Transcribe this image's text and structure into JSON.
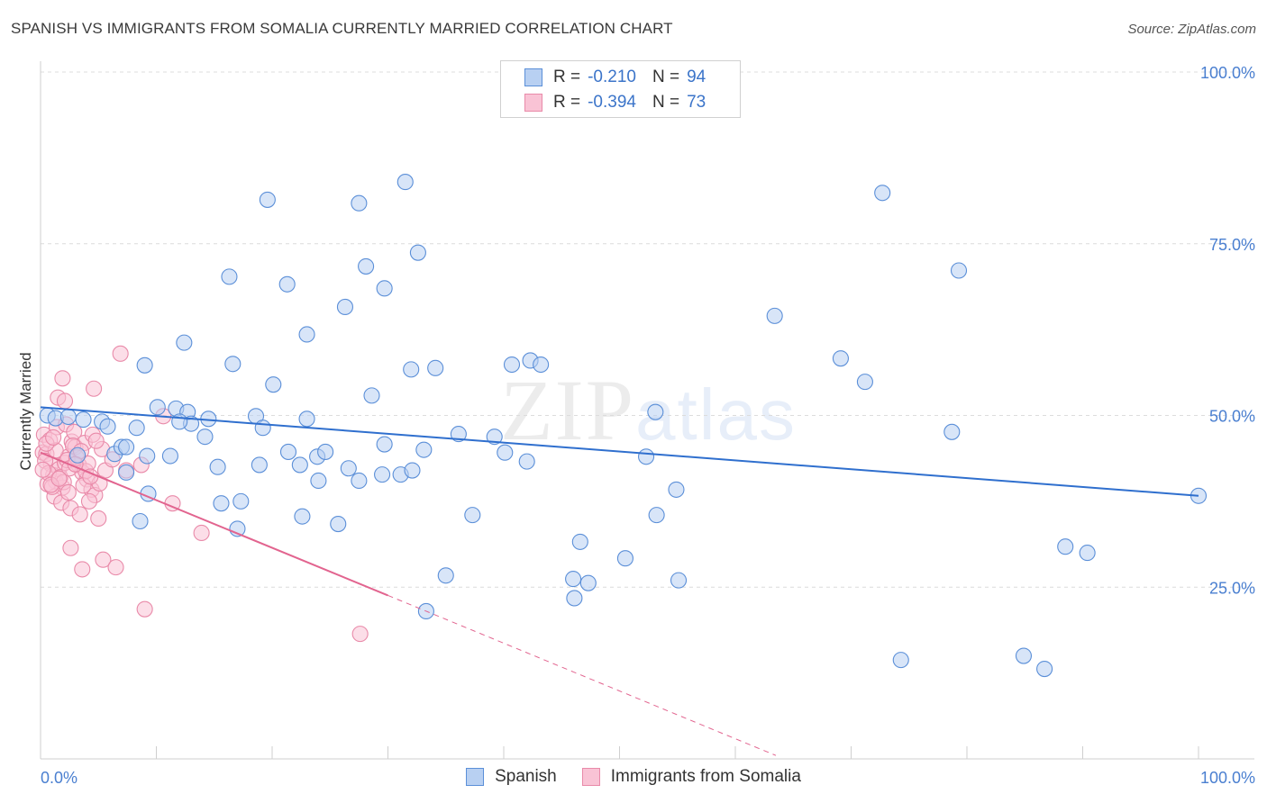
{
  "title": "SPANISH VS IMMIGRANTS FROM SOMALIA CURRENTLY MARRIED CORRELATION CHART",
  "source": "Source: ZipAtlas.com",
  "watermark": {
    "zip": "ZIP",
    "atlas": "atlas"
  },
  "legend": {
    "r_label": "R =",
    "n_label": "N =",
    "spanish": {
      "r": "-0.210",
      "n": "94"
    },
    "somalia": {
      "r": "-0.394",
      "n": "73"
    }
  },
  "colors": {
    "spanish_fill": "#b8d0f2",
    "spanish_stroke": "#5b8fd8",
    "spanish_line": "#2f6fce",
    "somalia_fill": "#f9c3d5",
    "somalia_stroke": "#e98aa9",
    "somalia_line": "#e2648f",
    "grid": "#dcdcdc",
    "tick_text": "#4a7fd0"
  },
  "chart_data": {
    "type": "scatter",
    "title": "SPANISH VS IMMIGRANTS FROM SOMALIA CURRENTLY MARRIED CORRELATION CHART",
    "xlabel": "",
    "ylabel": "Currently Married",
    "xlim": [
      0,
      100
    ],
    "ylim": [
      0,
      105
    ],
    "x_tick_labels": [
      "0.0%",
      "100.0%"
    ],
    "y_ticks": [
      25,
      50,
      75,
      100
    ],
    "y_tick_labels": [
      "25.0%",
      "50.0%",
      "75.0%",
      "100.0%"
    ],
    "grid": "horizontal dashed",
    "legend_position": "top-center",
    "series": [
      {
        "name": "Spanish",
        "r": -0.21,
        "n": 94,
        "trend": {
          "x": [
            0,
            100
          ],
          "y": [
            51.2,
            38.3
          ],
          "dashed_from": null
        },
        "points": [
          [
            0.6,
            50.0
          ],
          [
            1.3,
            49.6
          ],
          [
            2.4,
            49.8
          ],
          [
            3.7,
            49.4
          ],
          [
            5.3,
            49.1
          ],
          [
            5.8,
            48.4
          ],
          [
            8.3,
            48.2
          ],
          [
            10.1,
            51.2
          ],
          [
            11.7,
            51.0
          ],
          [
            12.7,
            50.5
          ],
          [
            13.0,
            48.8
          ],
          [
            14.5,
            49.5
          ],
          [
            18.6,
            49.9
          ],
          [
            19.2,
            48.2
          ],
          [
            23.0,
            49.5
          ],
          [
            3.2,
            44.2
          ],
          [
            6.4,
            44.4
          ],
          [
            7.0,
            45.4
          ],
          [
            7.4,
            45.4
          ],
          [
            9.2,
            44.1
          ],
          [
            11.2,
            44.1
          ],
          [
            14.2,
            46.9
          ],
          [
            15.3,
            42.5
          ],
          [
            18.9,
            42.8
          ],
          [
            21.4,
            44.7
          ],
          [
            23.9,
            44.0
          ],
          [
            24.6,
            44.7
          ],
          [
            27.5,
            40.5
          ],
          [
            28.6,
            52.9
          ],
          [
            29.5,
            41.4
          ],
          [
            29.7,
            45.8
          ],
          [
            31.1,
            41.4
          ],
          [
            32.1,
            42.0
          ],
          [
            24.0,
            40.5
          ],
          [
            9.3,
            38.6
          ],
          [
            7.4,
            41.7
          ],
          [
            15.6,
            37.2
          ],
          [
            17.3,
            37.5
          ],
          [
            17.0,
            33.5
          ],
          [
            22.6,
            35.3
          ],
          [
            25.7,
            34.2
          ],
          [
            8.6,
            34.6
          ],
          [
            9.0,
            57.3
          ],
          [
            12.4,
            60.6
          ],
          [
            16.6,
            57.5
          ],
          [
            20.1,
            54.5
          ],
          [
            23.0,
            61.8
          ],
          [
            32.0,
            56.7
          ],
          [
            34.1,
            56.9
          ],
          [
            36.1,
            47.3
          ],
          [
            39.2,
            46.9
          ],
          [
            40.7,
            57.4
          ],
          [
            42.3,
            58.0
          ],
          [
            43.2,
            57.4
          ],
          [
            52.3,
            44.0
          ],
          [
            53.1,
            50.5
          ],
          [
            54.9,
            39.2
          ],
          [
            16.3,
            70.2
          ],
          [
            21.3,
            69.1
          ],
          [
            26.3,
            65.8
          ],
          [
            28.1,
            71.7
          ],
          [
            29.7,
            68.5
          ],
          [
            19.6,
            81.4
          ],
          [
            27.5,
            80.9
          ],
          [
            31.5,
            84.0
          ],
          [
            32.6,
            73.7
          ],
          [
            63.4,
            64.5
          ],
          [
            69.1,
            58.3
          ],
          [
            71.2,
            54.9
          ],
          [
            72.7,
            82.4
          ],
          [
            79.3,
            71.1
          ],
          [
            78.7,
            47.6
          ],
          [
            35.0,
            26.7
          ],
          [
            46.6,
            31.6
          ],
          [
            50.5,
            29.2
          ],
          [
            53.2,
            35.5
          ],
          [
            46.0,
            26.2
          ],
          [
            46.1,
            23.4
          ],
          [
            47.3,
            25.6
          ],
          [
            55.1,
            26.0
          ],
          [
            33.3,
            21.5
          ],
          [
            74.3,
            14.4
          ],
          [
            84.9,
            15.0
          ],
          [
            86.7,
            13.1
          ],
          [
            88.5,
            30.9
          ],
          [
            90.4,
            30.0
          ],
          [
            100.0,
            38.3
          ],
          [
            42.0,
            43.3
          ],
          [
            40.1,
            44.6
          ],
          [
            37.3,
            35.5
          ],
          [
            22.4,
            42.8
          ],
          [
            26.6,
            42.3
          ],
          [
            33.1,
            45.0
          ],
          [
            12.0,
            49.1
          ]
        ]
      },
      {
        "name": "Immigrants from Somalia",
        "r": -0.394,
        "n": 73,
        "trend": {
          "x": [
            0,
            30,
            63.5
          ],
          "y": [
            44.6,
            23.8,
            0.5
          ],
          "dashed_from": 30
        },
        "points": [
          [
            0.2,
            44.6
          ],
          [
            0.5,
            44.4
          ],
          [
            0.9,
            42.9
          ],
          [
            1.1,
            41.3
          ],
          [
            1.3,
            40.4
          ],
          [
            1.6,
            42.2
          ],
          [
            1.9,
            39.5
          ],
          [
            2.1,
            43.1
          ],
          [
            2.4,
            44.0
          ],
          [
            2.7,
            46.2
          ],
          [
            3.0,
            45.4
          ],
          [
            3.3,
            42.8
          ],
          [
            3.6,
            41.7
          ],
          [
            4.0,
            40.7
          ],
          [
            4.4,
            39.2
          ],
          [
            4.7,
            38.4
          ],
          [
            5.1,
            40.1
          ],
          [
            5.6,
            42.0
          ],
          [
            0.3,
            47.2
          ],
          [
            0.8,
            46.4
          ],
          [
            1.4,
            48.3
          ],
          [
            2.2,
            48.7
          ],
          [
            2.9,
            47.6
          ],
          [
            3.8,
            46.0
          ],
          [
            4.5,
            47.2
          ],
          [
            5.3,
            45.1
          ],
          [
            0.6,
            40.0
          ],
          [
            1.2,
            38.2
          ],
          [
            1.8,
            37.3
          ],
          [
            2.6,
            36.5
          ],
          [
            3.4,
            35.6
          ],
          [
            4.2,
            37.5
          ],
          [
            5.0,
            35.0
          ],
          [
            6.2,
            43.6
          ],
          [
            7.4,
            42.0
          ],
          [
            1.5,
            52.6
          ],
          [
            2.1,
            52.1
          ],
          [
            1.9,
            55.4
          ],
          [
            4.6,
            53.9
          ],
          [
            6.9,
            59.0
          ],
          [
            2.6,
            30.7
          ],
          [
            3.6,
            27.6
          ],
          [
            5.4,
            29.0
          ],
          [
            6.5,
            27.9
          ],
          [
            9.0,
            21.8
          ],
          [
            8.7,
            42.8
          ],
          [
            10.6,
            49.9
          ],
          [
            11.4,
            37.2
          ],
          [
            13.9,
            32.9
          ],
          [
            27.6,
            18.2
          ],
          [
            0.4,
            43.4
          ],
          [
            0.7,
            41.6
          ],
          [
            1.0,
            39.6
          ],
          [
            1.3,
            44.9
          ],
          [
            1.7,
            41.0
          ],
          [
            2.0,
            40.3
          ],
          [
            2.3,
            43.5
          ],
          [
            2.5,
            42.3
          ],
          [
            2.8,
            45.6
          ],
          [
            3.1,
            43.9
          ],
          [
            3.5,
            44.8
          ],
          [
            3.9,
            41.9
          ],
          [
            4.1,
            43.0
          ],
          [
            0.2,
            42.1
          ],
          [
            0.9,
            39.9
          ],
          [
            1.6,
            40.8
          ],
          [
            2.4,
            38.8
          ],
          [
            3.0,
            42.9
          ],
          [
            3.7,
            39.8
          ],
          [
            4.3,
            41.1
          ],
          [
            0.5,
            45.9
          ],
          [
            1.1,
            46.8
          ],
          [
            4.8,
            46.3
          ]
        ]
      }
    ]
  },
  "bottom_legend": [
    "Spanish",
    "Immigrants from Somalia"
  ]
}
